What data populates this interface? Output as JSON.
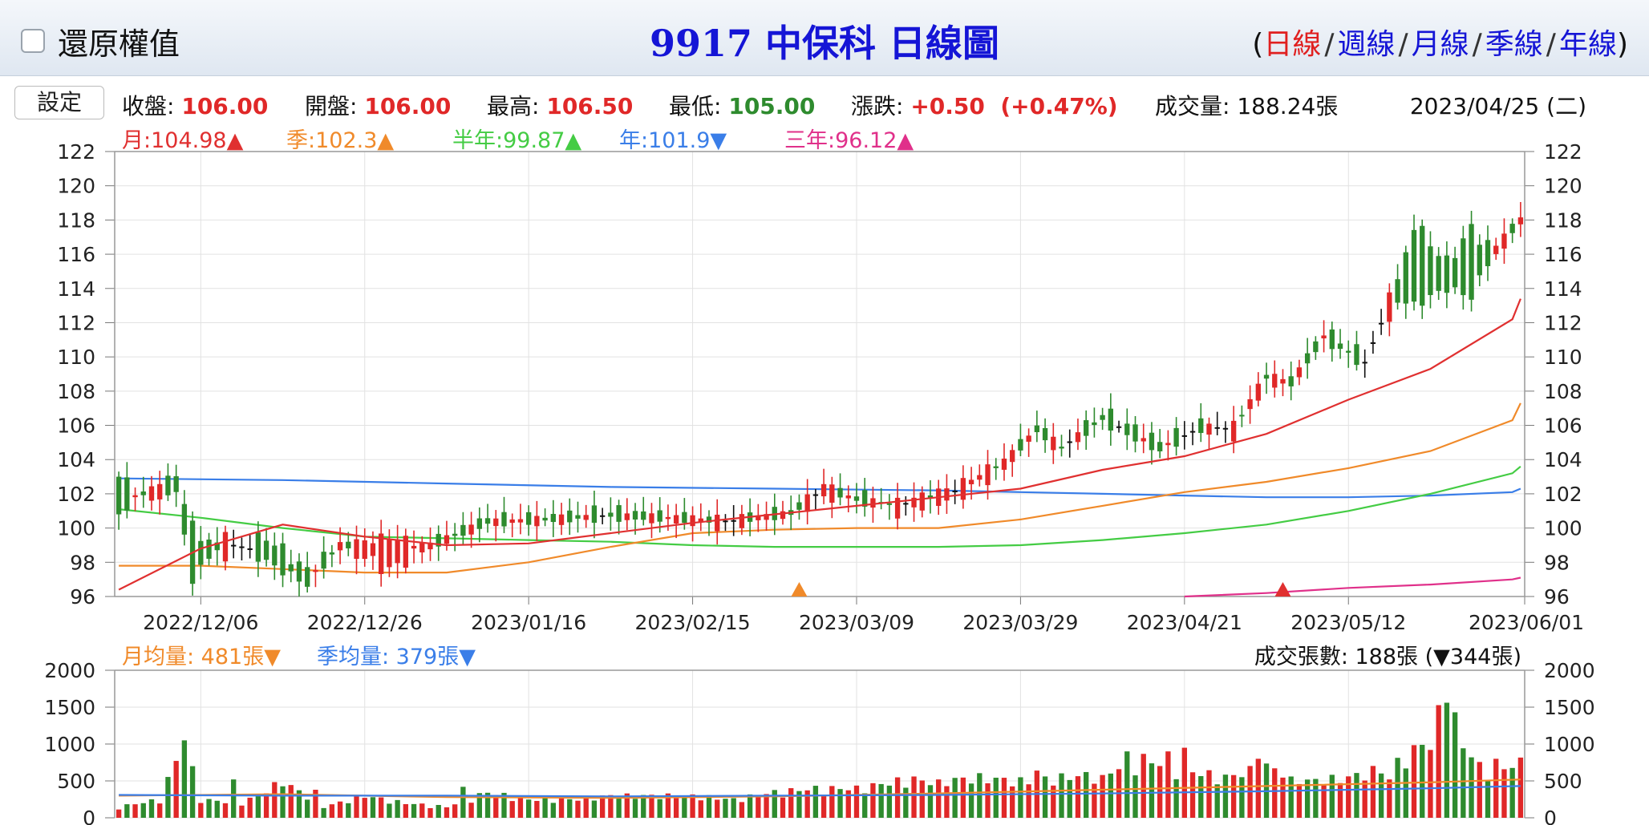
{
  "header": {
    "adjust_label": "還原權值",
    "title": "9917 中保科  日線圖",
    "periods": [
      {
        "label": "日線",
        "active": true
      },
      {
        "label": "週線",
        "active": false
      },
      {
        "label": "月線",
        "active": false
      },
      {
        "label": "季線",
        "active": false
      },
      {
        "label": "年線",
        "active": false
      }
    ],
    "open_paren": "(",
    "close_paren": ")",
    "separator": "/"
  },
  "toolbar": {
    "settings_label": "設定"
  },
  "quote": {
    "close_label": "收盤:",
    "close": "106.00",
    "open_label": "開盤:",
    "open": "106.00",
    "high_label": "最高:",
    "high": "106.50",
    "low_label": "最低:",
    "low": "105.00",
    "change_label": "漲跌:",
    "change": "+0.50  (+0.47%)",
    "volume_label": "成交量:",
    "volume": "188.24張",
    "date": "2023/04/25 (二)"
  },
  "ma_labels": [
    {
      "text": "月:104.98▲",
      "color": "#e03030"
    },
    {
      "text": "季:102.3▲",
      "color": "#f08a2a"
    },
    {
      "text": "半年:99.87▲",
      "color": "#44cc44"
    },
    {
      "text": "年:101.9▼",
      "color": "#3a7ee8"
    },
    {
      "text": "三年:96.12▲",
      "color": "#e0308a"
    }
  ],
  "volume_info": {
    "month_avg": "月均量: 481張▼",
    "quarter_avg": "季均量: 379張▼",
    "total": "成交張數: 188張 (▼344張)"
  },
  "colors": {
    "up": "#e02828",
    "down": "#2e8b2e",
    "flat": "#111111",
    "ma_month": "#e03030",
    "ma_quarter": "#f08a2a",
    "ma_half": "#44cc44",
    "ma_year": "#3a7ee8",
    "ma_three_year": "#e0308a",
    "vol_ma_month": "#f08a2a",
    "vol_ma_quarter": "#3a7ee8",
    "grid": "#e2e2e2",
    "frame": "#999999"
  },
  "chart_data": [
    {
      "type": "candlestick",
      "title": "9917 中保科  日線圖",
      "ylim": [
        96,
        122
      ],
      "yticks": [
        96,
        98,
        100,
        102,
        104,
        106,
        108,
        110,
        112,
        114,
        116,
        118,
        120,
        122
      ],
      "xticks": [
        "2022/12/06",
        "2022/12/26",
        "2023/01/16",
        "2023/02/15",
        "2023/03/09",
        "2023/03/29",
        "2023/04/21",
        "2023/05/12",
        "2023/06/01"
      ],
      "xtick_positions": [
        10,
        30,
        50,
        70,
        90,
        110,
        130,
        150,
        170
      ],
      "markers": [
        {
          "index": 83,
          "value": 96.0,
          "color": "#f08a2a"
        },
        {
          "index": 142,
          "value": 96.0,
          "color": "#e03030"
        }
      ],
      "anchors": [
        [
          0,
          103.0,
          100.8
        ],
        [
          4,
          101.5,
          102.5
        ],
        [
          7,
          103.2,
          102.0
        ],
        [
          9,
          100.0,
          97.0
        ],
        [
          13,
          98.5,
          99.5
        ],
        [
          18,
          99.5,
          98.0
        ],
        [
          23,
          97.5,
          96.7
        ],
        [
          27,
          99.0,
          99.0
        ],
        [
          33,
          97.5,
          99.5
        ],
        [
          38,
          99.0,
          99.0
        ],
        [
          45,
          100.5,
          100.3
        ],
        [
          52,
          100.5,
          100.5
        ],
        [
          60,
          101.0,
          100.6
        ],
        [
          67,
          100.6,
          100.6
        ],
        [
          74,
          100.2,
          100.5
        ],
        [
          82,
          101.0,
          100.8
        ],
        [
          86,
          101.8,
          102.6
        ],
        [
          90,
          102.0,
          101.5
        ],
        [
          95,
          101.0,
          101.5
        ],
        [
          102,
          101.8,
          102.4
        ],
        [
          108,
          103.5,
          104.0
        ],
        [
          112,
          106.0,
          105.6
        ],
        [
          115,
          104.5,
          104.8
        ],
        [
          120,
          106.8,
          106.2
        ],
        [
          127,
          105.0,
          104.5
        ],
        [
          132,
          106.0,
          105.8
        ],
        [
          136,
          105.5,
          106.0
        ],
        [
          140,
          108.5,
          109.0
        ],
        [
          143,
          108.5,
          108.5
        ],
        [
          147,
          111.5,
          111.0
        ],
        [
          152,
          110.0,
          109.5
        ],
        [
          155,
          112.5,
          113.5
        ],
        [
          158,
          117.8,
          113.0
        ],
        [
          162,
          115.5,
          114.0
        ],
        [
          165,
          117.5,
          113.5
        ],
        [
          168,
          116.0,
          116.5
        ],
        [
          171,
          118.0,
          118.0
        ]
      ],
      "lines": {
        "month": [
          [
            0,
            96.4
          ],
          [
            10,
            98.8
          ],
          [
            20,
            100.2
          ],
          [
            30,
            99.5
          ],
          [
            40,
            99.0
          ],
          [
            50,
            99.1
          ],
          [
            60,
            99.7
          ],
          [
            70,
            100.3
          ],
          [
            80,
            100.8
          ],
          [
            90,
            101.3
          ],
          [
            100,
            101.8
          ],
          [
            110,
            102.3
          ],
          [
            120,
            103.4
          ],
          [
            130,
            104.2
          ],
          [
            140,
            105.5
          ],
          [
            150,
            107.5
          ],
          [
            160,
            109.3
          ],
          [
            170,
            112.2
          ],
          [
            171,
            113.4
          ]
        ],
        "quarter": [
          [
            0,
            97.8
          ],
          [
            10,
            97.8
          ],
          [
            20,
            97.6
          ],
          [
            30,
            97.4
          ],
          [
            40,
            97.4
          ],
          [
            50,
            98.0
          ],
          [
            60,
            98.9
          ],
          [
            70,
            99.7
          ],
          [
            80,
            99.9
          ],
          [
            90,
            100.0
          ],
          [
            100,
            100.0
          ],
          [
            110,
            100.5
          ],
          [
            120,
            101.3
          ],
          [
            130,
            102.1
          ],
          [
            140,
            102.7
          ],
          [
            150,
            103.5
          ],
          [
            160,
            104.5
          ],
          [
            170,
            106.3
          ],
          [
            171,
            107.3
          ]
        ],
        "half": [
          [
            0,
            101.1
          ],
          [
            10,
            100.6
          ],
          [
            20,
            100.0
          ],
          [
            30,
            99.5
          ],
          [
            40,
            99.4
          ],
          [
            50,
            99.3
          ],
          [
            60,
            99.2
          ],
          [
            70,
            99.0
          ],
          [
            80,
            98.9
          ],
          [
            90,
            98.9
          ],
          [
            100,
            98.9
          ],
          [
            110,
            99.0
          ],
          [
            120,
            99.3
          ],
          [
            130,
            99.7
          ],
          [
            140,
            100.2
          ],
          [
            150,
            101.0
          ],
          [
            160,
            102.0
          ],
          [
            170,
            103.2
          ],
          [
            171,
            103.6
          ]
        ],
        "year": [
          [
            0,
            102.9
          ],
          [
            20,
            102.8
          ],
          [
            40,
            102.6
          ],
          [
            60,
            102.4
          ],
          [
            80,
            102.3
          ],
          [
            100,
            102.2
          ],
          [
            110,
            102.1
          ],
          [
            120,
            102.0
          ],
          [
            130,
            101.9
          ],
          [
            140,
            101.8
          ],
          [
            150,
            101.8
          ],
          [
            160,
            101.9
          ],
          [
            170,
            102.1
          ],
          [
            171,
            102.3
          ]
        ],
        "three_year": [
          [
            130,
            96.0
          ],
          [
            140,
            96.2
          ],
          [
            150,
            96.5
          ],
          [
            160,
            96.7
          ],
          [
            170,
            97.0
          ],
          [
            171,
            97.1
          ]
        ]
      }
    },
    {
      "type": "bar",
      "title": "成交張數",
      "ylim": [
        0,
        2000
      ],
      "yticks": [
        0,
        500,
        1000,
        1500,
        2000
      ],
      "vol_anchors": [
        [
          0,
          150
        ],
        [
          5,
          250
        ],
        [
          8,
          1050
        ],
        [
          10,
          250
        ],
        [
          15,
          200
        ],
        [
          20,
          500
        ],
        [
          25,
          150
        ],
        [
          30,
          300
        ],
        [
          35,
          200
        ],
        [
          40,
          150
        ],
        [
          45,
          350
        ],
        [
          50,
          250
        ],
        [
          55,
          250
        ],
        [
          60,
          300
        ],
        [
          70,
          300
        ],
        [
          75,
          250
        ],
        [
          80,
          350
        ],
        [
          85,
          400
        ],
        [
          90,
          400
        ],
        [
          95,
          500
        ],
        [
          100,
          500
        ],
        [
          105,
          550
        ],
        [
          110,
          500
        ],
        [
          115,
          550
        ],
        [
          120,
          600
        ],
        [
          125,
          800
        ],
        [
          130,
          650
        ],
        [
          135,
          550
        ],
        [
          140,
          700
        ],
        [
          145,
          500
        ],
        [
          150,
          550
        ],
        [
          155,
          700
        ],
        [
          158,
          900
        ],
        [
          162,
          1600
        ],
        [
          164,
          1000
        ],
        [
          166,
          700
        ],
        [
          168,
          650
        ],
        [
          171,
          750
        ]
      ],
      "spikes": [
        [
          8,
          1050
        ],
        [
          9,
          700
        ],
        [
          14,
          520
        ],
        [
          24,
          380
        ],
        [
          42,
          420
        ],
        [
          97,
          560
        ],
        [
          100,
          520
        ],
        [
          112,
          640
        ],
        [
          120,
          580
        ],
        [
          123,
          900
        ],
        [
          128,
          900
        ],
        [
          130,
          950
        ],
        [
          139,
          800
        ],
        [
          143,
          560
        ],
        [
          155,
          520
        ],
        [
          160,
          920
        ],
        [
          162,
          1560
        ],
        [
          163,
          1430
        ],
        [
          168,
          800
        ]
      ],
      "ma_month": [
        [
          0,
          300
        ],
        [
          20,
          320
        ],
        [
          40,
          280
        ],
        [
          60,
          270
        ],
        [
          80,
          290
        ],
        [
          100,
          330
        ],
        [
          120,
          380
        ],
        [
          140,
          430
        ],
        [
          160,
          480
        ],
        [
          171,
          520
        ]
      ],
      "ma_quarter": [
        [
          0,
          310
        ],
        [
          20,
          300
        ],
        [
          40,
          300
        ],
        [
          60,
          290
        ],
        [
          80,
          300
        ],
        [
          100,
          310
        ],
        [
          120,
          330
        ],
        [
          140,
          360
        ],
        [
          160,
          400
        ],
        [
          171,
          430
        ]
      ]
    }
  ]
}
